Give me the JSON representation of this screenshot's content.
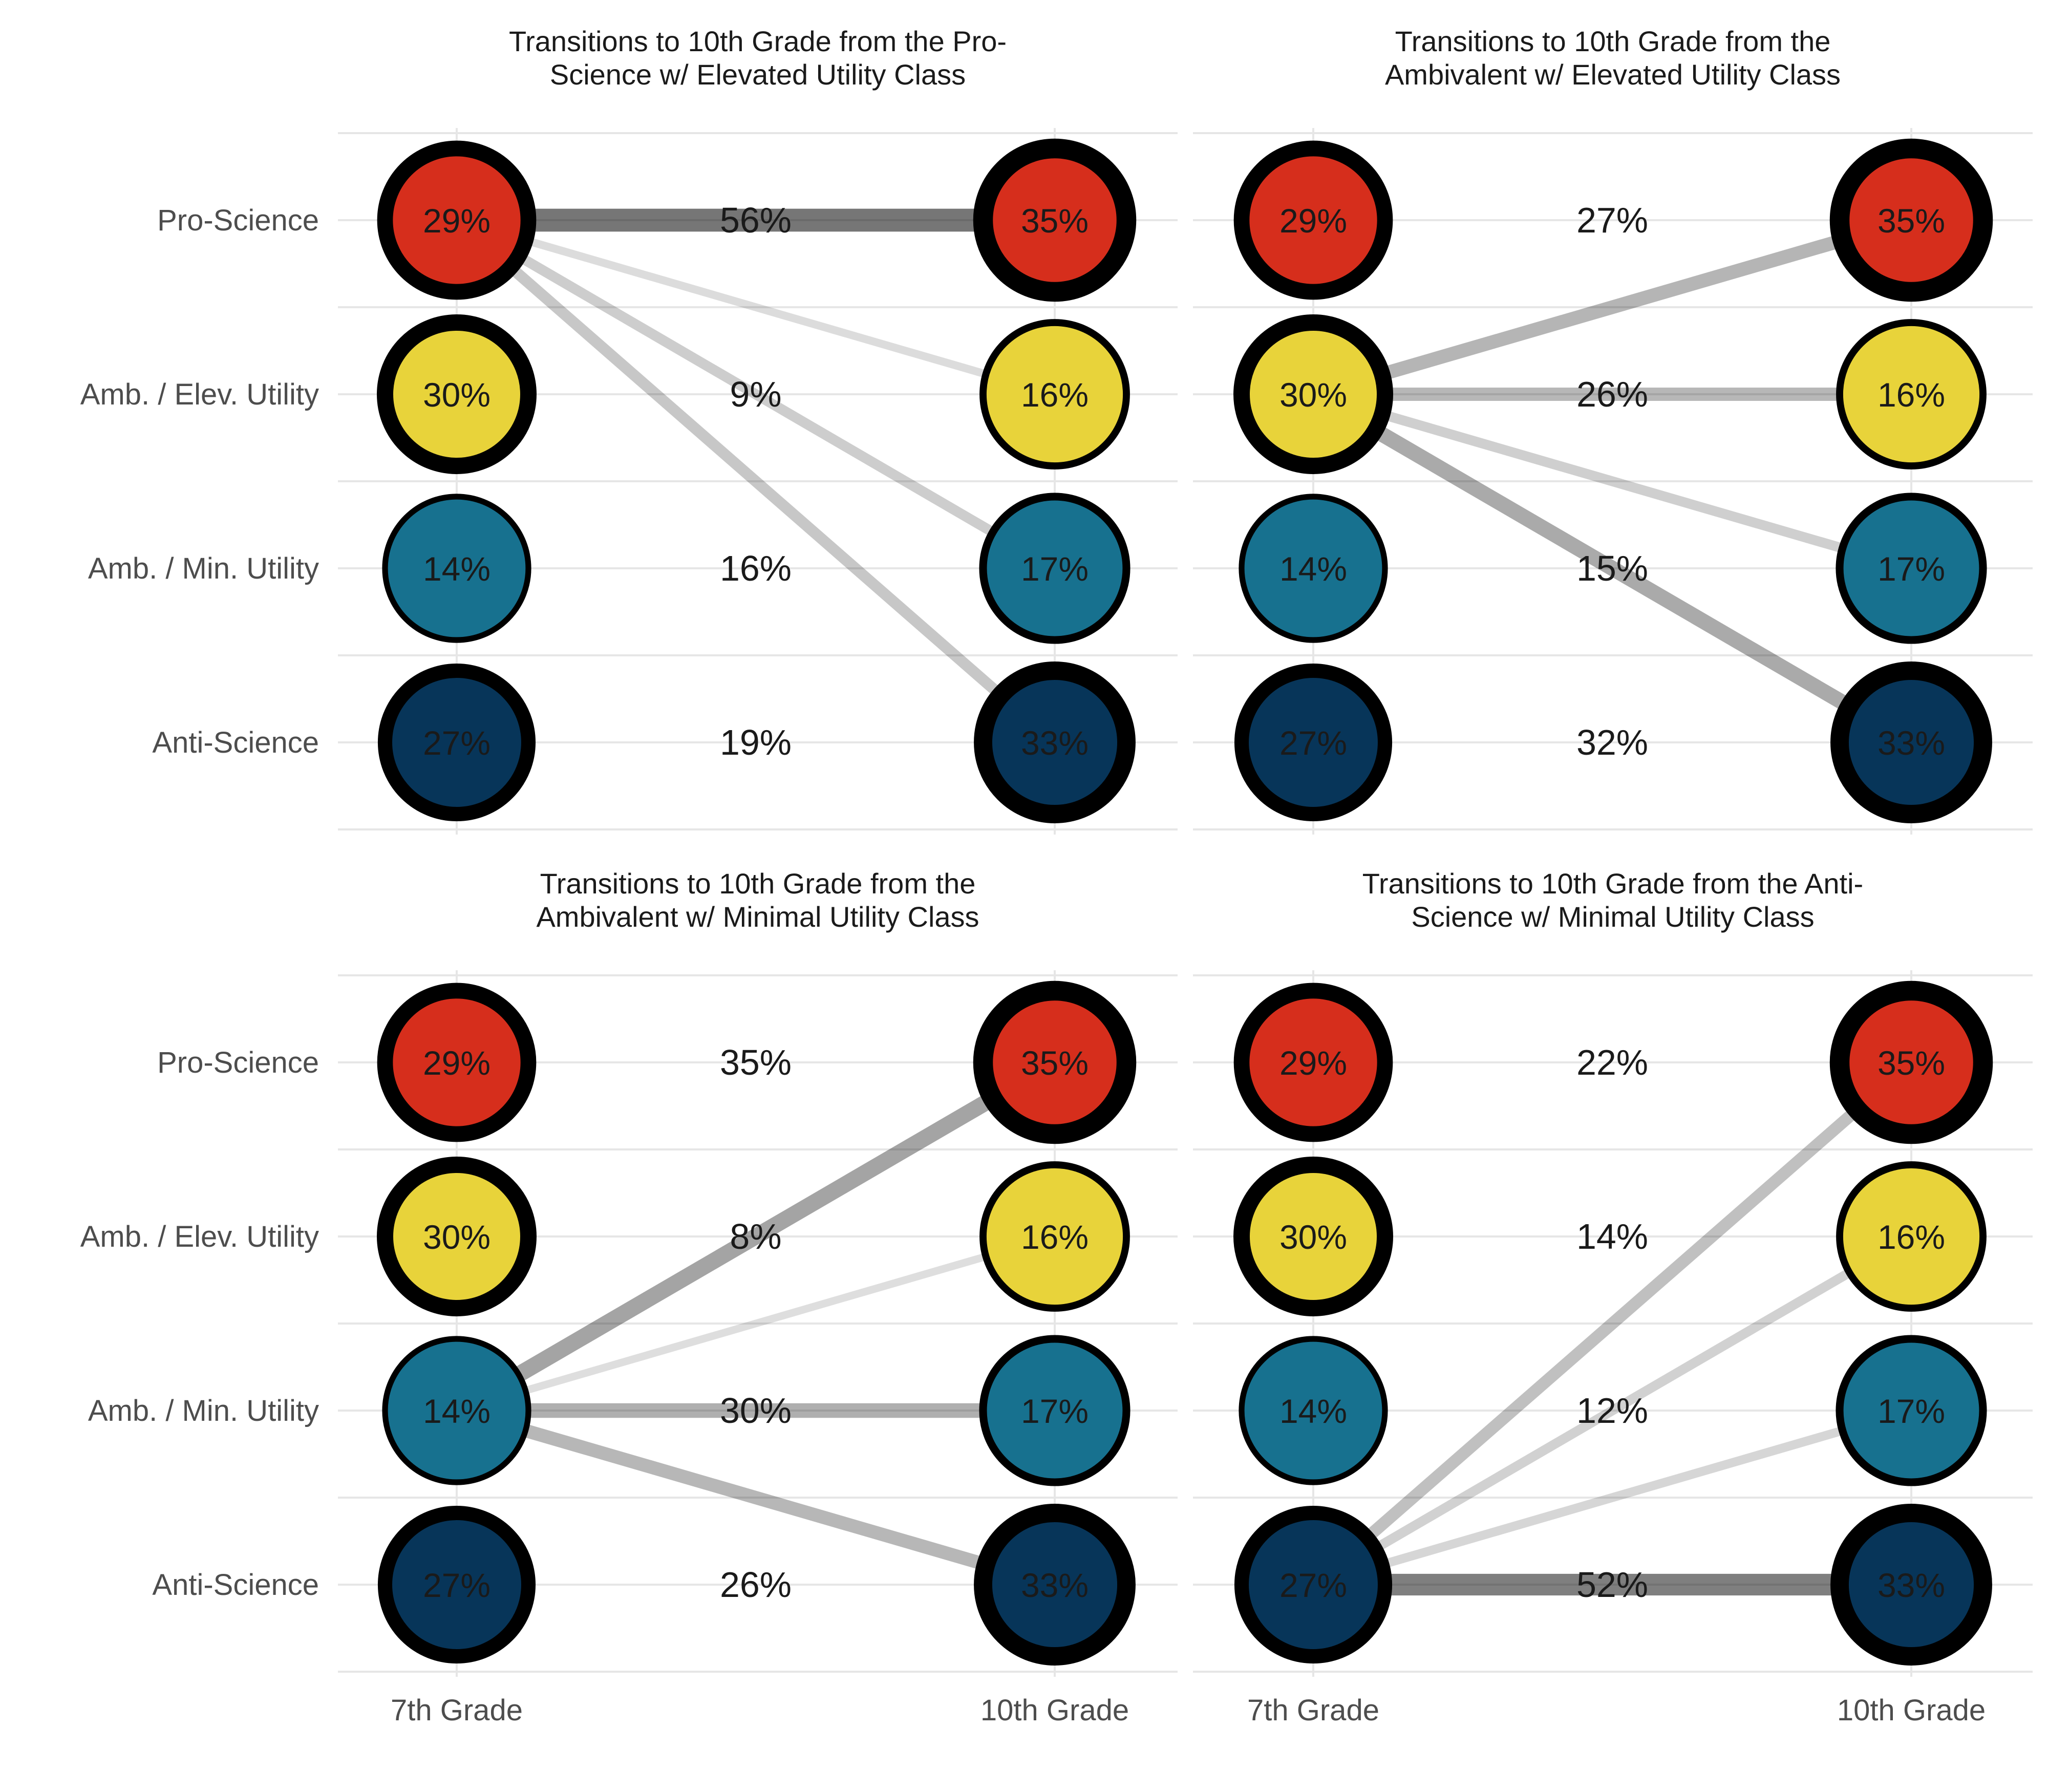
{
  "chart_data": {
    "type": "flow",
    "states": [
      "Pro-Science",
      "Amb. / Elev. Utility",
      "Amb. / Min. Utility",
      "Anti-Science"
    ],
    "x_labels": [
      "7th Grade",
      "10th Grade"
    ],
    "grade7_prevalence": [
      "29%",
      "30%",
      "14%",
      "27%"
    ],
    "grade10_prevalence": [
      "35%",
      "16%",
      "17%",
      "33%"
    ],
    "colors": {
      "Pro-Science": "#D62E1C",
      "Amb. / Elev. Utility": "#E8D33A",
      "Amb. / Min. Utility": "#17718F",
      "Anti-Science": "#073559"
    },
    "panels": [
      {
        "title_lines": [
          "Transitions to 10th Grade from the Pro-",
          "Science w/ Elevated Utility Class"
        ],
        "from_index": 0,
        "transitions": [
          {
            "to_index": 0,
            "value": 56,
            "label": "56%"
          },
          {
            "to_index": 1,
            "value": 9,
            "label": "9%"
          },
          {
            "to_index": 2,
            "value": 16,
            "label": "16%"
          },
          {
            "to_index": 3,
            "value": 19,
            "label": "19%"
          }
        ]
      },
      {
        "title_lines": [
          "Transitions to 10th Grade from the",
          "Ambivalent w/ Elevated Utility Class"
        ],
        "from_index": 1,
        "transitions": [
          {
            "to_index": 0,
            "value": 27,
            "label": "27%"
          },
          {
            "to_index": 1,
            "value": 26,
            "label": "26%"
          },
          {
            "to_index": 2,
            "value": 15,
            "label": "15%"
          },
          {
            "to_index": 3,
            "value": 32,
            "label": "32%"
          }
        ]
      },
      {
        "title_lines": [
          "Transitions to 10th Grade from the",
          "Ambivalent w/ Minimal Utility Class"
        ],
        "from_index": 2,
        "transitions": [
          {
            "to_index": 0,
            "value": 35,
            "label": "35%"
          },
          {
            "to_index": 1,
            "value": 8,
            "label": "8%"
          },
          {
            "to_index": 2,
            "value": 30,
            "label": "30%"
          },
          {
            "to_index": 3,
            "value": 26,
            "label": "26%"
          }
        ]
      },
      {
        "title_lines": [
          "Transitions to 10th Grade from the Anti-",
          "Science w/ Minimal Utility Class"
        ],
        "from_index": 3,
        "transitions": [
          {
            "to_index": 0,
            "value": 22,
            "label": "22%"
          },
          {
            "to_index": 1,
            "value": 14,
            "label": "14%"
          },
          {
            "to_index": 2,
            "value": 12,
            "label": "12%"
          },
          {
            "to_index": 3,
            "value": 52,
            "label": "52%"
          }
        ]
      }
    ],
    "grid": true
  }
}
